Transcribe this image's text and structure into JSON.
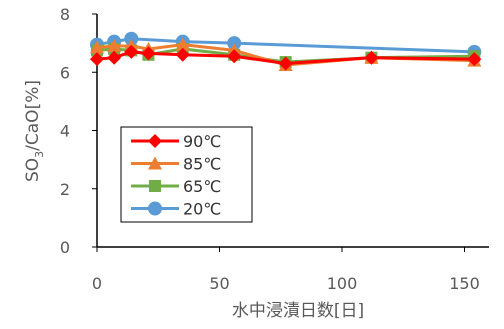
{
  "chart_data": {
    "type": "line",
    "xlabel": "水中浸漬日数[日]",
    "ylabel_main": "SO",
    "ylabel_sub": "3",
    "ylabel_rest": "/CaO[%]",
    "xlim": [
      0,
      160
    ],
    "ylim": [
      0,
      8
    ],
    "xticks": [
      0,
      50,
      100,
      150
    ],
    "yticks": [
      0,
      2,
      4,
      6,
      8
    ],
    "grid": false,
    "legend_position": "left-center",
    "series": [
      {
        "name": "90℃",
        "color": "#ff0000",
        "marker": "diamond",
        "x": [
          0,
          7,
          14,
          21,
          35,
          56,
          77,
          112,
          154
        ],
        "y": [
          6.45,
          6.5,
          6.7,
          6.65,
          6.6,
          6.55,
          6.3,
          6.5,
          6.45
        ]
      },
      {
        "name": "85℃",
        "color": "#ed7d31",
        "marker": "triangle",
        "x": [
          0,
          7,
          14,
          21,
          35,
          56,
          77,
          112,
          154
        ],
        "y": [
          6.85,
          6.9,
          6.9,
          6.8,
          6.95,
          6.75,
          6.25,
          6.5,
          6.4
        ]
      },
      {
        "name": "65℃",
        "color": "#70ad47",
        "marker": "square",
        "x": [
          0,
          7,
          14,
          21,
          35,
          56,
          77,
          112,
          154
        ],
        "y": [
          6.75,
          6.8,
          6.75,
          6.6,
          6.8,
          6.6,
          6.35,
          6.5,
          6.55
        ]
      },
      {
        "name": "20℃",
        "color": "#5b9bd5",
        "marker": "circle",
        "x": [
          0,
          7,
          14,
          35,
          56,
          154
        ],
        "y": [
          6.95,
          7.05,
          7.15,
          7.05,
          7.0,
          6.7
        ]
      }
    ]
  }
}
